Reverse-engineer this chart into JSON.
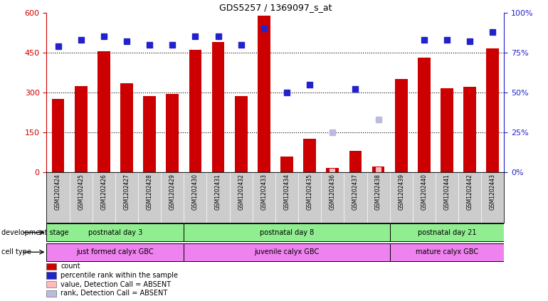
{
  "title": "GDS5257 / 1369097_s_at",
  "samples": [
    "GSM1202424",
    "GSM1202425",
    "GSM1202426",
    "GSM1202427",
    "GSM1202428",
    "GSM1202429",
    "GSM1202430",
    "GSM1202431",
    "GSM1202432",
    "GSM1202433",
    "GSM1202434",
    "GSM1202435",
    "GSM1202436",
    "GSM1202437",
    "GSM1202438",
    "GSM1202439",
    "GSM1202440",
    "GSM1202441",
    "GSM1202442",
    "GSM1202443"
  ],
  "counts": [
    275,
    325,
    455,
    335,
    285,
    295,
    460,
    490,
    285,
    590,
    60,
    125,
    15,
    80,
    20,
    350,
    430,
    315,
    320,
    465
  ],
  "percentile_ranks": [
    79,
    83,
    85,
    82,
    80,
    80,
    85,
    85,
    80,
    90,
    50,
    55,
    null,
    52,
    null,
    null,
    83,
    83,
    82,
    88
  ],
  "absent_value": [
    null,
    null,
    null,
    null,
    null,
    null,
    null,
    null,
    null,
    null,
    null,
    null,
    12,
    null,
    18,
    null,
    null,
    null,
    null,
    null
  ],
  "absent_rank": [
    null,
    null,
    null,
    null,
    null,
    null,
    null,
    null,
    null,
    null,
    null,
    null,
    25,
    null,
    33,
    null,
    null,
    null,
    null,
    null
  ],
  "bar_color": "#cc0000",
  "dot_color": "#2222cc",
  "absent_val_color": "#ffbbbb",
  "absent_rank_color": "#bbbbdd",
  "ylim_left": [
    0,
    600
  ],
  "ylim_right": [
    0,
    100
  ],
  "yticks_left": [
    0,
    150,
    300,
    450,
    600
  ],
  "yticks_right": [
    0,
    25,
    50,
    75,
    100
  ],
  "hlines": [
    150,
    300,
    450
  ],
  "group_dev": [
    {
      "label": "postnatal day 3",
      "start": 0,
      "end": 6,
      "color": "#90ee90"
    },
    {
      "label": "postnatal day 8",
      "start": 6,
      "end": 15,
      "color": "#90ee90"
    },
    {
      "label": "postnatal day 21",
      "start": 15,
      "end": 20,
      "color": "#90ee90"
    }
  ],
  "group_cell": [
    {
      "label": "just formed calyx GBC",
      "start": 0,
      "end": 6,
      "color": "#ee82ee"
    },
    {
      "label": "juvenile calyx GBC",
      "start": 6,
      "end": 15,
      "color": "#ee82ee"
    },
    {
      "label": "mature calyx GBC",
      "start": 15,
      "end": 20,
      "color": "#ee82ee"
    }
  ],
  "dev_stage_label": "development stage",
  "cell_type_label": "cell type",
  "legend_items": [
    {
      "label": "count",
      "color": "#cc0000"
    },
    {
      "label": "percentile rank within the sample",
      "color": "#2222cc"
    },
    {
      "label": "value, Detection Call = ABSENT",
      "color": "#ffbbbb"
    },
    {
      "label": "rank, Detection Call = ABSENT",
      "color": "#bbbbdd"
    }
  ],
  "bar_width": 0.55,
  "dot_size": 6,
  "absent_dot_size": 6
}
